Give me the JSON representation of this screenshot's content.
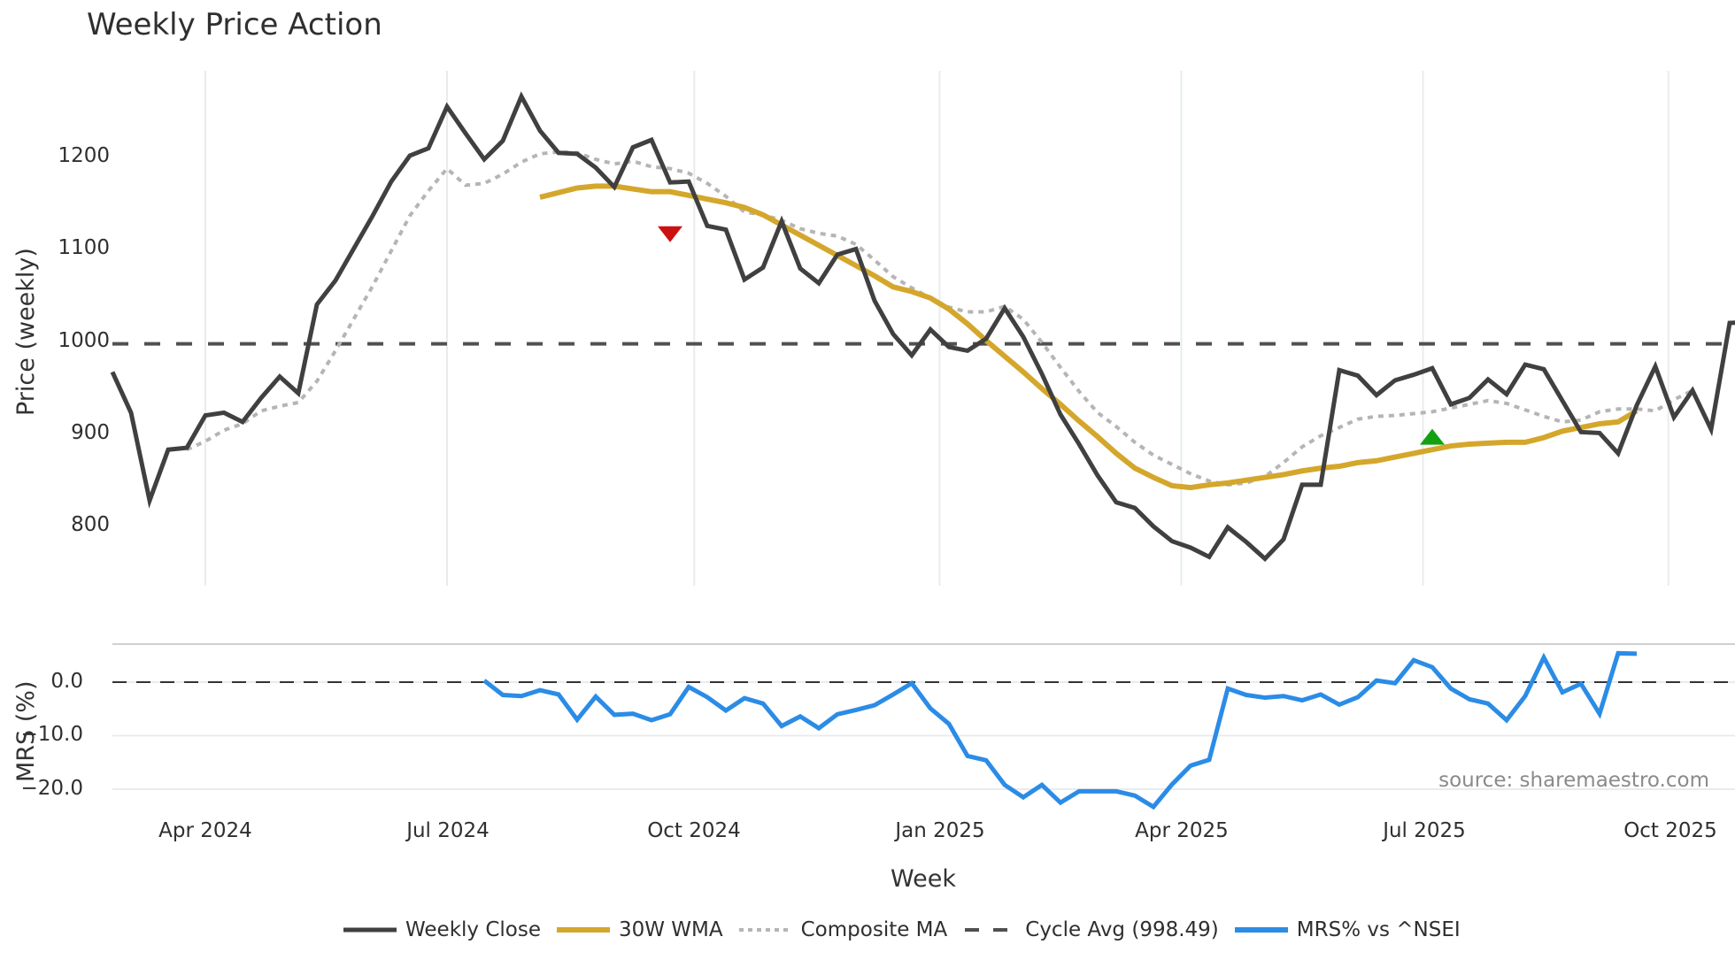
{
  "title": "Weekly Price Action",
  "source": "source: sharemaestro.com",
  "colors": {
    "weekly_close": "#404040",
    "wma": "#d4a72c",
    "composite_ma": "#b5b5b5",
    "cycle_avg": "#505050",
    "mrs": "#2b8ce6",
    "sell_marker": "#cc1111",
    "buy_marker": "#13a013",
    "grid": "#e8ecef"
  },
  "legend": [
    {
      "key": "weekly_close",
      "label": "Weekly Close"
    },
    {
      "key": "wma",
      "label": "30W WMA"
    },
    {
      "key": "composite_ma",
      "label": "Composite MA"
    },
    {
      "key": "cycle_avg",
      "label": "Cycle Avg (998.49)"
    },
    {
      "key": "mrs",
      "label": "MRS% vs ^NSEI"
    }
  ],
  "chart_data": [
    {
      "type": "line",
      "title": "Weekly Price Action",
      "xlabel": "Week",
      "ylabel": "Price (weekly)",
      "ylim": [
        740,
        1290
      ],
      "yticks": [
        800,
        900,
        1000,
        1100,
        1200
      ],
      "xtick_labels": [
        "Apr 2024",
        "Jul 2024",
        "Oct 2024",
        "Jan 2025",
        "Apr 2025",
        "Jul 2025",
        "Oct 2025"
      ],
      "xtick_index": [
        5,
        18,
        31.3,
        44.5,
        57.5,
        70.5,
        83.7
      ],
      "grid": true,
      "legend_position": "bottom",
      "series": [
        {
          "name": "Weekly Close",
          "start_index": 0,
          "values": [
            968,
            924,
            829,
            884,
            886,
            921,
            924,
            914,
            940,
            963,
            945,
            1041,
            1067,
            1102,
            1137,
            1174,
            1202,
            1210,
            1255,
            1226,
            1198,
            1218,
            1266,
            1229,
            1205,
            1204,
            1189,
            1168,
            1211,
            1219,
            1173,
            1174,
            1126,
            1122,
            1068,
            1081,
            1131,
            1080,
            1064,
            1095,
            1101,
            1045,
            1009,
            986,
            1014,
            995,
            991,
            1004,
            1037,
            1006,
            966,
            922,
            890,
            856,
            827,
            821,
            801,
            785,
            778,
            768,
            800,
            784,
            766,
            787,
            846,
            846,
            970,
            964,
            943,
            959,
            965,
            972,
            933,
            940,
            960,
            944,
            976,
            971,
            937,
            903,
            902,
            880,
            932,
            974,
            919,
            948,
            906,
            1021,
            1022
          ]
        },
        {
          "name": "30W WMA",
          "start_index": 23,
          "values": [
            1157,
            1162,
            1167,
            1169,
            1169,
            1166,
            1163,
            1163,
            1159,
            1155,
            1151,
            1146,
            1138,
            1127,
            1116,
            1105,
            1094,
            1083,
            1072,
            1060,
            1055,
            1048,
            1036,
            1020,
            1002,
            985,
            968,
            950,
            933,
            915,
            898,
            880,
            864,
            854,
            845,
            843,
            846,
            848,
            851,
            854,
            857,
            861,
            864,
            866,
            870,
            872,
            876,
            880,
            884,
            888,
            890,
            891,
            892,
            892,
            897,
            904,
            908,
            912,
            914,
            926
          ]
        },
        {
          "name": "Composite MA",
          "start_index": 4,
          "values": [
            884,
            893,
            905,
            912,
            926,
            931,
            935,
            958,
            991,
            1026,
            1061,
            1099,
            1137,
            1164,
            1188,
            1170,
            1172,
            1182,
            1195,
            1204,
            1206,
            1205,
            1198,
            1193,
            1196,
            1190,
            1188,
            1183,
            1172,
            1158,
            1141,
            1138,
            1132,
            1123,
            1118,
            1115,
            1106,
            1089,
            1071,
            1059,
            1048,
            1038,
            1033,
            1033,
            1039,
            1025,
            1000,
            973,
            947,
            924,
            909,
            892,
            878,
            868,
            858,
            850,
            846,
            848,
            855,
            870,
            887,
            899,
            908,
            917,
            920,
            921,
            923,
            925,
            929,
            933,
            937,
            934,
            927,
            920,
            914,
            916,
            925,
            928,
            928,
            926,
            938,
            948
          ]
        },
        {
          "name": "Cycle Avg (998.49)",
          "constant": 998.49
        }
      ],
      "markers": [
        {
          "type": "sell",
          "shape": "triangle-down",
          "index": 30,
          "value": 1118
        },
        {
          "type": "buy",
          "shape": "triangle-up",
          "index": 71,
          "value": 897
        }
      ]
    },
    {
      "type": "line",
      "ylabel": "MRS (%)",
      "ylim": [
        -25,
        7
      ],
      "yticks": [
        0.0,
        -10.0,
        -20.0
      ],
      "yticks_labels": [
        "0.0",
        "−10.0",
        "−20.0"
      ],
      "zero_line": "dashed",
      "series": [
        {
          "name": "MRS% vs ^NSEI",
          "start_index": 20,
          "values": [
            0.3,
            -2.4,
            -2.6,
            -1.5,
            -2.3,
            -7.0,
            -2.7,
            -6.1,
            -5.9,
            -7.1,
            -6.0,
            -0.9,
            -2.8,
            -5.3,
            -3.0,
            -4.0,
            -8.2,
            -6.4,
            -8.6,
            -6.0,
            -5.2,
            -4.3,
            -2.3,
            -0.2,
            -4.9,
            -7.8,
            -13.8,
            -14.6,
            -19.2,
            -21.5,
            -19.2,
            -22.5,
            -20.4,
            -20.4,
            -20.4,
            -21.2,
            -23.3,
            -19.1,
            -15.6,
            -14.5,
            -1.2,
            -2.4,
            -2.9,
            -2.6,
            -3.4,
            -2.3,
            -4.2,
            -2.8,
            0.3,
            -0.2,
            4.1,
            2.8,
            -1.2,
            -3.2,
            -4.0,
            -7.1,
            -2.6,
            4.6,
            -1.9,
            -0.3,
            -5.9,
            5.4,
            5.3
          ]
        }
      ]
    }
  ],
  "axes": {
    "price_ylabel": "Price (weekly)",
    "mrs_ylabel": "MRS (%)",
    "xlabel": "Week",
    "price_ticks": [
      "1200",
      "1100",
      "1000",
      "900",
      "800"
    ],
    "mrs_ticks": [
      "0.0",
      "−10.0",
      "−20.0"
    ],
    "x_ticks": [
      "Apr 2024",
      "Jul 2024",
      "Oct 2024",
      "Jan 2025",
      "Apr 2025",
      "Jul 2025",
      "Oct 2025"
    ]
  }
}
